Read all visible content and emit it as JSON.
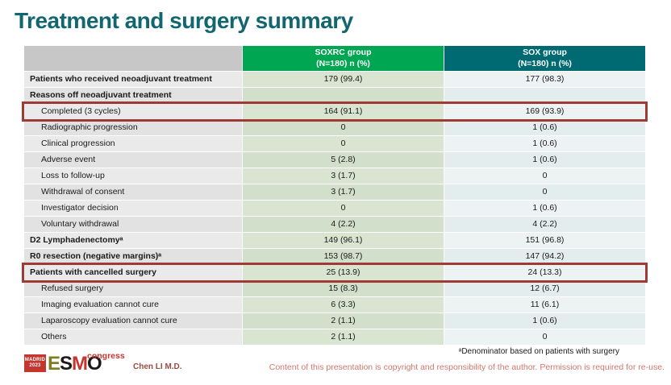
{
  "title": "Treatment and surgery summary",
  "table": {
    "header": {
      "soxrc_line1": "SOXRC group",
      "soxrc_line2": "(N=180)  n (%)",
      "sox_line1": "SOX group",
      "sox_line2": "(N=180)  n (%)"
    },
    "rows": [
      {
        "label": "Patients who received neoadjuvant treatment",
        "soxrc": "179 (99.4)",
        "sox": "177 (98.3)",
        "bold": true,
        "indent": false,
        "highlighted": false
      },
      {
        "label": "Reasons off neoadjuvant treatment",
        "soxrc": "",
        "sox": "",
        "bold": true,
        "indent": false,
        "highlighted": false
      },
      {
        "label": "Completed (3 cycles)",
        "soxrc": "164 (91.1)",
        "sox": "169 (93.9)",
        "bold": false,
        "indent": true,
        "highlighted": true
      },
      {
        "label": "Radiographic progression",
        "soxrc": "0",
        "sox": "1 (0.6)",
        "bold": false,
        "indent": true,
        "highlighted": false
      },
      {
        "label": "Clinical progression",
        "soxrc": "0",
        "sox": "1 (0.6)",
        "bold": false,
        "indent": true,
        "highlighted": false
      },
      {
        "label": "Adverse event",
        "soxrc": "5 (2.8)",
        "sox": "1 (0.6)",
        "bold": false,
        "indent": true,
        "highlighted": false
      },
      {
        "label": "Loss to follow-up",
        "soxrc": "3 (1.7)",
        "sox": "0",
        "bold": false,
        "indent": true,
        "highlighted": false
      },
      {
        "label": "Withdrawal of consent",
        "soxrc": "3 (1.7)",
        "sox": "0",
        "bold": false,
        "indent": true,
        "highlighted": false
      },
      {
        "label": "Investigator decision",
        "soxrc": "0",
        "sox": "1 (0.6)",
        "bold": false,
        "indent": true,
        "highlighted": false
      },
      {
        "label": "Voluntary withdrawal",
        "soxrc": "4 (2.2)",
        "sox": "4 (2.2)",
        "bold": false,
        "indent": true,
        "highlighted": false
      },
      {
        "label": "D2 Lymphadenectomyᵃ",
        "soxrc": "149 (96.1)",
        "sox": "151 (96.8)",
        "bold": true,
        "indent": false,
        "highlighted": false
      },
      {
        "label": "R0 resection (negative margins)ᵃ",
        "soxrc": "153 (98.7)",
        "sox": "147 (94.2)",
        "bold": true,
        "indent": false,
        "highlighted": false
      },
      {
        "label": "Patients with cancelled surgery",
        "soxrc": "25 (13.9)",
        "sox": "24 (13.3)",
        "bold": true,
        "indent": false,
        "highlighted": true
      },
      {
        "label": "Refused surgery",
        "soxrc": "15 (8.3)",
        "sox": "12 (6.7)",
        "bold": false,
        "indent": true,
        "highlighted": false
      },
      {
        "label": "Imaging evaluation cannot cure",
        "soxrc": "6 (3.3)",
        "sox": "11 (6.1)",
        "bold": false,
        "indent": true,
        "highlighted": false
      },
      {
        "label": "Laparoscopy evaluation cannot cure",
        "soxrc": "2 (1.1)",
        "sox": "1 (0.6)",
        "bold": false,
        "indent": true,
        "highlighted": false
      },
      {
        "label": "Others",
        "soxrc": "2 (1.1)",
        "sox": "0",
        "bold": false,
        "indent": true,
        "highlighted": false
      }
    ]
  },
  "footer": {
    "logo": {
      "city": "MADRID",
      "year": "2023",
      "name": "ESMO",
      "suffix": "congress"
    },
    "presenter": "Chen LI M.D.",
    "footnote": "ᵃDenominator based on patients with surgery",
    "copyright": "Content of this presentation is copyright and responsibility of the author. Permission is required for re-use."
  },
  "colors": {
    "title": "#11666F",
    "header_green": "#00A651",
    "header_teal": "#006A72",
    "highlight_border": "#9E3B35",
    "logo_red": "#C4372F",
    "logo_olive": "#7E7D20",
    "presenter_text": "#9C4A42",
    "copyright_text": "#D4766C"
  }
}
